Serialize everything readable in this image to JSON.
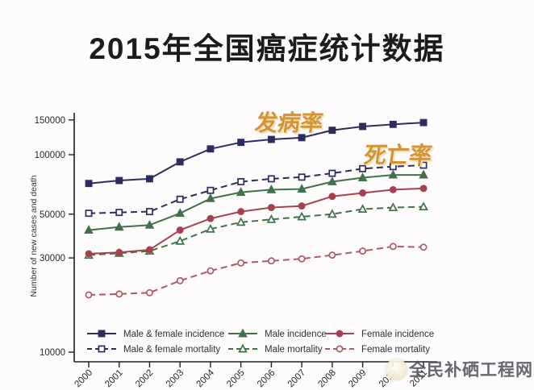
{
  "header": {
    "title": "2015年全国癌症统计数据"
  },
  "watermark": {
    "logo": "sun-logo",
    "text": "全民补硒工程网"
  },
  "colors": {
    "navy": "#2c2c5e",
    "green": "#41714a",
    "red": "#a4414e",
    "red_light": "#ad5a64",
    "annotation_orange": "#d39434",
    "axis": "#1f1f1f",
    "tick_text": "#2a2a2a",
    "legend_text": "#2e2e3a"
  },
  "chart_data": {
    "type": "line",
    "title": "",
    "xlabel": "",
    "ylabel": "Number of new cases and death",
    "x": [
      2000,
      2001,
      2002,
      2003,
      2004,
      2005,
      2006,
      2007,
      2008,
      2009,
      2010,
      2011
    ],
    "y_scale": "log",
    "y_ticks": [
      150000,
      100000,
      50000,
      30000,
      10000
    ],
    "ylim": [
      10000,
      160000
    ],
    "grid": false,
    "legend_position": "inside-bottom",
    "annotations": [
      {
        "id": "incidence-rate",
        "text": "发病率",
        "x": 357,
        "y": 162,
        "color": "#d39434"
      },
      {
        "id": "mortality-rate",
        "text": "死亡率",
        "x": 492,
        "y": 202,
        "color": "#d39434"
      }
    ],
    "series": [
      {
        "name": "Male & female incidence",
        "marker": "square",
        "fill": "filled",
        "line": "solid",
        "color": "#2c2c5e",
        "values": [
          71500,
          74000,
          75500,
          92000,
          107000,
          115500,
          119500,
          122000,
          133000,
          139000,
          142500,
          145500
        ]
      },
      {
        "name": "Male & female mortality",
        "marker": "square",
        "fill": "open",
        "line": "dashed",
        "color": "#2c2c5e",
        "values": [
          50500,
          51000,
          51500,
          59500,
          66000,
          73000,
          75500,
          77000,
          80500,
          85000,
          87000,
          88500
        ]
      },
      {
        "name": "Male incidence",
        "marker": "triangle",
        "fill": "filled",
        "line": "solid",
        "color": "#41714a",
        "values": [
          41500,
          43000,
          44000,
          50500,
          60000,
          64500,
          66500,
          67000,
          73000,
          76500,
          79000,
          79000
        ]
      },
      {
        "name": "Male mortality",
        "marker": "triangle",
        "fill": "open",
        "line": "dashed",
        "color": "#41714a",
        "values": [
          31000,
          31700,
          32500,
          36500,
          42000,
          45500,
          47000,
          48500,
          50000,
          53000,
          54000,
          54500
        ]
      },
      {
        "name": "Female incidence",
        "marker": "circle",
        "fill": "filled",
        "line": "solid",
        "color": "#a4414e",
        "values": [
          31500,
          32000,
          33000,
          41500,
          47500,
          51500,
          54000,
          55000,
          61500,
          64000,
          66500,
          67500
        ]
      },
      {
        "name": "Female mortality",
        "marker": "circle",
        "fill": "open",
        "line": "dashed",
        "color": "#ad5a64",
        "values": [
          19500,
          19700,
          20000,
          23000,
          25800,
          28300,
          29000,
          29700,
          31000,
          32500,
          34300,
          34000
        ]
      }
    ],
    "legend_order_column_major": [
      "Male & female incidence",
      "Male & female mortality",
      "Male incidence",
      "Male mortality",
      "Female incidence",
      "Female mortality"
    ]
  }
}
